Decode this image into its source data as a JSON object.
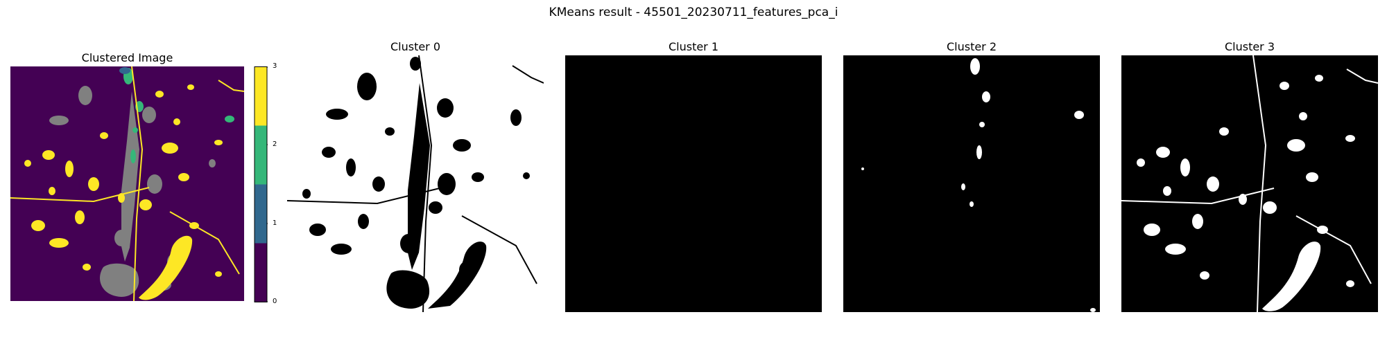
{
  "suptitle": "KMeans result - 45501_20230711_features_pca_i",
  "chart_data": [
    {
      "type": "heatmap",
      "title": "Clustered Image",
      "axis": "off",
      "colors": {
        "0": "#440154",
        "1": "#31688e",
        "2": "#35b779",
        "3": "#fde725",
        "masked": "#808080"
      },
      "colorbar": {
        "ticks": [
          "0",
          "1",
          "2",
          "3"
        ],
        "range": [
          0,
          3
        ]
      }
    },
    {
      "type": "heatmap",
      "title": "Cluster 0",
      "cmap": "gray",
      "axis": "off"
    },
    {
      "type": "heatmap",
      "title": "Cluster 1",
      "cmap": "gray",
      "axis": "off"
    },
    {
      "type": "heatmap",
      "title": "Cluster 2",
      "cmap": "gray",
      "axis": "off"
    },
    {
      "type": "heatmap",
      "title": "Cluster 3",
      "cmap": "gray",
      "axis": "off"
    }
  ]
}
